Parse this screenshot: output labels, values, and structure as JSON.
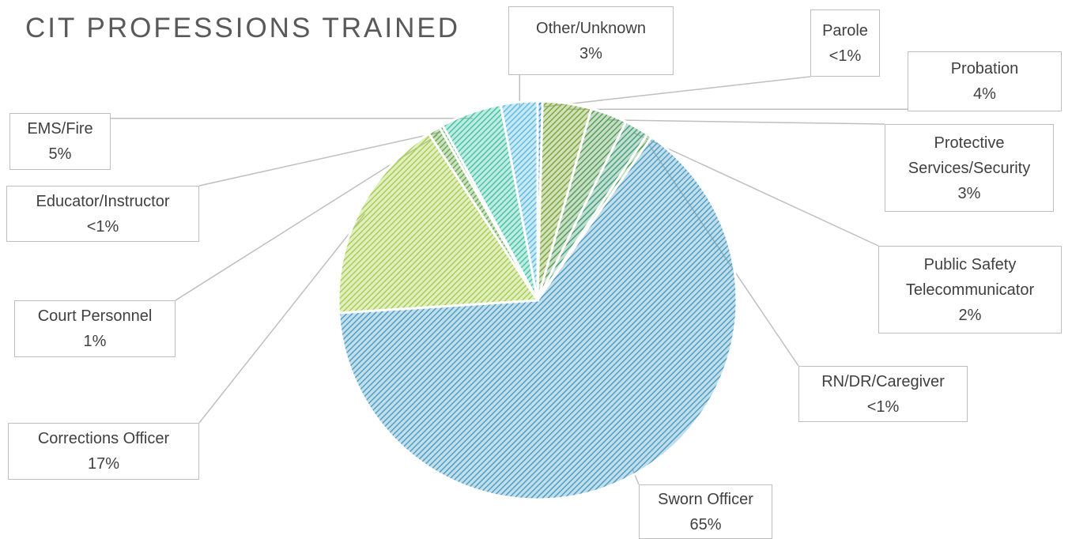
{
  "chart_data": {
    "type": "pie",
    "title": "CIT PROFESSIONS TRAINED",
    "categories": [
      "Parole",
      "Probation",
      "Protective Services/Security",
      "Public Safety Telecommunicator",
      "RN/DR/Caregiver",
      "Sworn Officer",
      "Corrections Officer",
      "Court Personnel",
      "Educator/Instructor",
      "EMS/Fire",
      "Other/Unknown"
    ],
    "values": [
      0.4,
      4,
      3,
      2,
      0.4,
      65,
      17,
      1,
      0.3,
      5,
      3
    ],
    "value_labels": [
      "<1%",
      "4%",
      "3%",
      "2%",
      "<1%",
      "65%",
      "17%",
      "1%",
      "<1%",
      "5%",
      "3%"
    ],
    "colors": [
      "#2f8fd0",
      "#7fa83c",
      "#5a9e5a",
      "#4aa07a",
      "#4c9c4c",
      "#4f9fc4",
      "#a9cf4f",
      "#6aa84f",
      "#58a85a",
      "#48c4a8",
      "#5fbde0"
    ]
  }
}
